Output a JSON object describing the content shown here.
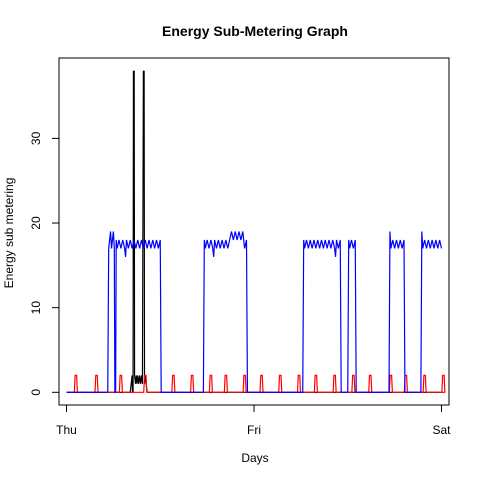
{
  "chart_data": {
    "type": "line",
    "title": "Energy Sub-Metering Graph",
    "xlabel": "Days",
    "ylabel": "Energy sub metering",
    "x_ticks": [
      {
        "label": "Thu",
        "value": 0
      },
      {
        "label": "Fri",
        "value": 1
      },
      {
        "label": "Sat",
        "value": 2
      }
    ],
    "y_ticks": [
      0,
      10,
      20,
      30
    ],
    "xlim": [
      -0.04,
      2.04
    ],
    "ylim": [
      -1.5,
      39.5
    ],
    "grid": false,
    "legend": "none",
    "series": [
      {
        "color": "#000000",
        "points": [
          [
            0,
            0
          ],
          [
            0.34,
            0
          ],
          [
            0.345,
            1
          ],
          [
            0.35,
            2
          ],
          [
            0.352,
            0
          ],
          [
            0.355,
            0
          ],
          [
            0.357,
            38
          ],
          [
            0.359,
            37
          ],
          [
            0.361,
            38
          ],
          [
            0.363,
            2
          ],
          [
            0.368,
            1
          ],
          [
            0.372,
            2
          ],
          [
            0.376,
            1
          ],
          [
            0.38,
            2
          ],
          [
            0.385,
            1
          ],
          [
            0.39,
            2
          ],
          [
            0.395,
            1
          ],
          [
            0.4,
            2
          ],
          [
            0.405,
            1
          ],
          [
            0.41,
            38
          ],
          [
            0.412,
            37
          ],
          [
            0.414,
            38
          ],
          [
            0.416,
            1
          ],
          [
            0.42,
            2
          ],
          [
            0.43,
            0
          ],
          [
            2,
            0
          ]
        ]
      },
      {
        "color": "#ff0000",
        "pulse_centers": [
          0.05,
          0.16,
          0.29,
          0.42,
          0.57,
          0.67,
          0.77,
          0.85,
          0.95,
          1.04,
          1.14,
          1.24,
          1.33,
          1.43,
          1.53,
          1.62,
          1.73,
          1.81,
          1.91,
          2.01
        ],
        "pulse_values": [
          2,
          1,
          0
        ]
      },
      {
        "color": "#0000ff",
        "points": [
          [
            0,
            0
          ],
          [
            0.22,
            0
          ],
          [
            0.225,
            17
          ],
          [
            0.23,
            18
          ],
          [
            0.235,
            19
          ],
          [
            0.24,
            17
          ],
          [
            0.245,
            18
          ],
          [
            0.25,
            19
          ],
          [
            0.255,
            17
          ],
          [
            0.258,
            0
          ],
          [
            0.262,
            0
          ],
          [
            0.265,
            18
          ],
          [
            0.27,
            17
          ],
          [
            0.28,
            18
          ],
          [
            0.29,
            17
          ],
          [
            0.3,
            18
          ],
          [
            0.31,
            17
          ],
          [
            0.315,
            16
          ],
          [
            0.32,
            18
          ],
          [
            0.33,
            17
          ],
          [
            0.34,
            18
          ],
          [
            0.35,
            17
          ],
          [
            0.36,
            18
          ],
          [
            0.37,
            17
          ],
          [
            0.38,
            18
          ],
          [
            0.39,
            17
          ],
          [
            0.4,
            18
          ],
          [
            0.41,
            17
          ],
          [
            0.42,
            18
          ],
          [
            0.43,
            17
          ],
          [
            0.44,
            18
          ],
          [
            0.45,
            17
          ],
          [
            0.46,
            18
          ],
          [
            0.47,
            17
          ],
          [
            0.48,
            18
          ],
          [
            0.49,
            17
          ],
          [
            0.5,
            18
          ],
          [
            0.505,
            0
          ],
          [
            0.73,
            0
          ],
          [
            0.735,
            18
          ],
          [
            0.74,
            17
          ],
          [
            0.75,
            18
          ],
          [
            0.76,
            17
          ],
          [
            0.77,
            18
          ],
          [
            0.78,
            17
          ],
          [
            0.785,
            16
          ],
          [
            0.79,
            18
          ],
          [
            0.8,
            17
          ],
          [
            0.81,
            18
          ],
          [
            0.82,
            17
          ],
          [
            0.83,
            18
          ],
          [
            0.84,
            17
          ],
          [
            0.85,
            18
          ],
          [
            0.86,
            17
          ],
          [
            0.87,
            18
          ],
          [
            0.88,
            19
          ],
          [
            0.89,
            18
          ],
          [
            0.9,
            19
          ],
          [
            0.91,
            18
          ],
          [
            0.92,
            19
          ],
          [
            0.93,
            18
          ],
          [
            0.94,
            19
          ],
          [
            0.945,
            18
          ],
          [
            0.95,
            17
          ],
          [
            0.96,
            18
          ],
          [
            0.965,
            0
          ],
          [
            1.26,
            0
          ],
          [
            1.265,
            18
          ],
          [
            1.27,
            17
          ],
          [
            1.28,
            18
          ],
          [
            1.29,
            17
          ],
          [
            1.3,
            18
          ],
          [
            1.31,
            17
          ],
          [
            1.32,
            18
          ],
          [
            1.33,
            17
          ],
          [
            1.34,
            18
          ],
          [
            1.35,
            17
          ],
          [
            1.36,
            18
          ],
          [
            1.37,
            17
          ],
          [
            1.38,
            18
          ],
          [
            1.39,
            17
          ],
          [
            1.4,
            18
          ],
          [
            1.41,
            17
          ],
          [
            1.42,
            18
          ],
          [
            1.43,
            17
          ],
          [
            1.435,
            16
          ],
          [
            1.44,
            18
          ],
          [
            1.45,
            17
          ],
          [
            1.46,
            18
          ],
          [
            1.465,
            0
          ],
          [
            1.5,
            0
          ],
          [
            1.505,
            18
          ],
          [
            1.51,
            17
          ],
          [
            1.52,
            18
          ],
          [
            1.53,
            17
          ],
          [
            1.54,
            18
          ],
          [
            1.545,
            0
          ],
          [
            1.72,
            0
          ],
          [
            1.725,
            19
          ],
          [
            1.73,
            17
          ],
          [
            1.74,
            18
          ],
          [
            1.75,
            17
          ],
          [
            1.76,
            18
          ],
          [
            1.77,
            17
          ],
          [
            1.78,
            18
          ],
          [
            1.79,
            17
          ],
          [
            1.8,
            18
          ],
          [
            1.805,
            0
          ],
          [
            1.89,
            0
          ],
          [
            1.895,
            19
          ],
          [
            1.9,
            17
          ],
          [
            1.91,
            18
          ],
          [
            1.92,
            17
          ],
          [
            1.93,
            18
          ],
          [
            1.94,
            17
          ],
          [
            1.95,
            18
          ],
          [
            1.96,
            17
          ],
          [
            1.97,
            18
          ],
          [
            1.98,
            17
          ],
          [
            1.99,
            18
          ],
          [
            2,
            17
          ]
        ]
      }
    ]
  }
}
